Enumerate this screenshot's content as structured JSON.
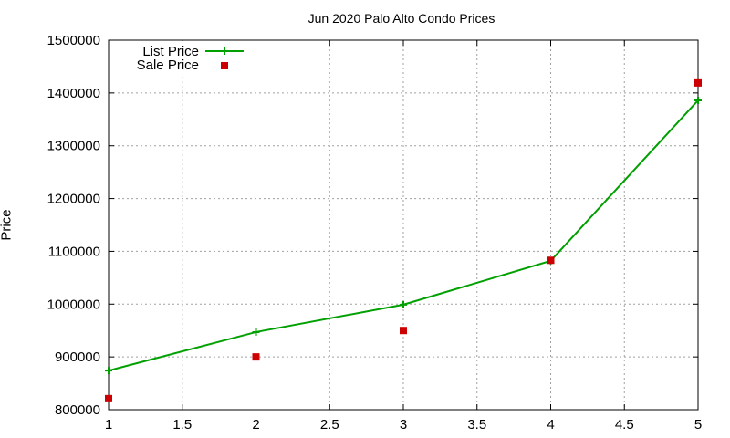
{
  "chart_data": {
    "type": "line",
    "title": "Jun 2020 Palo Alto Condo Prices",
    "xlabel": "",
    "ylabel": "Price",
    "xlim": [
      1,
      5
    ],
    "ylim": [
      800000,
      1500000
    ],
    "x_ticks": [
      "1",
      "1.5",
      "2",
      "2.5",
      "3",
      "3.5",
      "4",
      "4.5",
      "5"
    ],
    "y_ticks": [
      "800000",
      "900000",
      "1000000",
      "1100000",
      "1200000",
      "1300000",
      "1400000",
      "1500000"
    ],
    "grid": true,
    "legend_position": "top-left",
    "x": [
      1,
      2,
      3,
      4,
      5
    ],
    "series": [
      {
        "name": "List Price",
        "style": "lines+points",
        "marker": "plus",
        "color": "#00a000",
        "values": [
          874000,
          947000,
          999000,
          1082000,
          1386000
        ]
      },
      {
        "name": "Sale Price",
        "style": "points",
        "marker": "square",
        "color": "#cc0000",
        "values": [
          821000,
          900000,
          950000,
          1083000,
          1419000
        ]
      }
    ]
  }
}
